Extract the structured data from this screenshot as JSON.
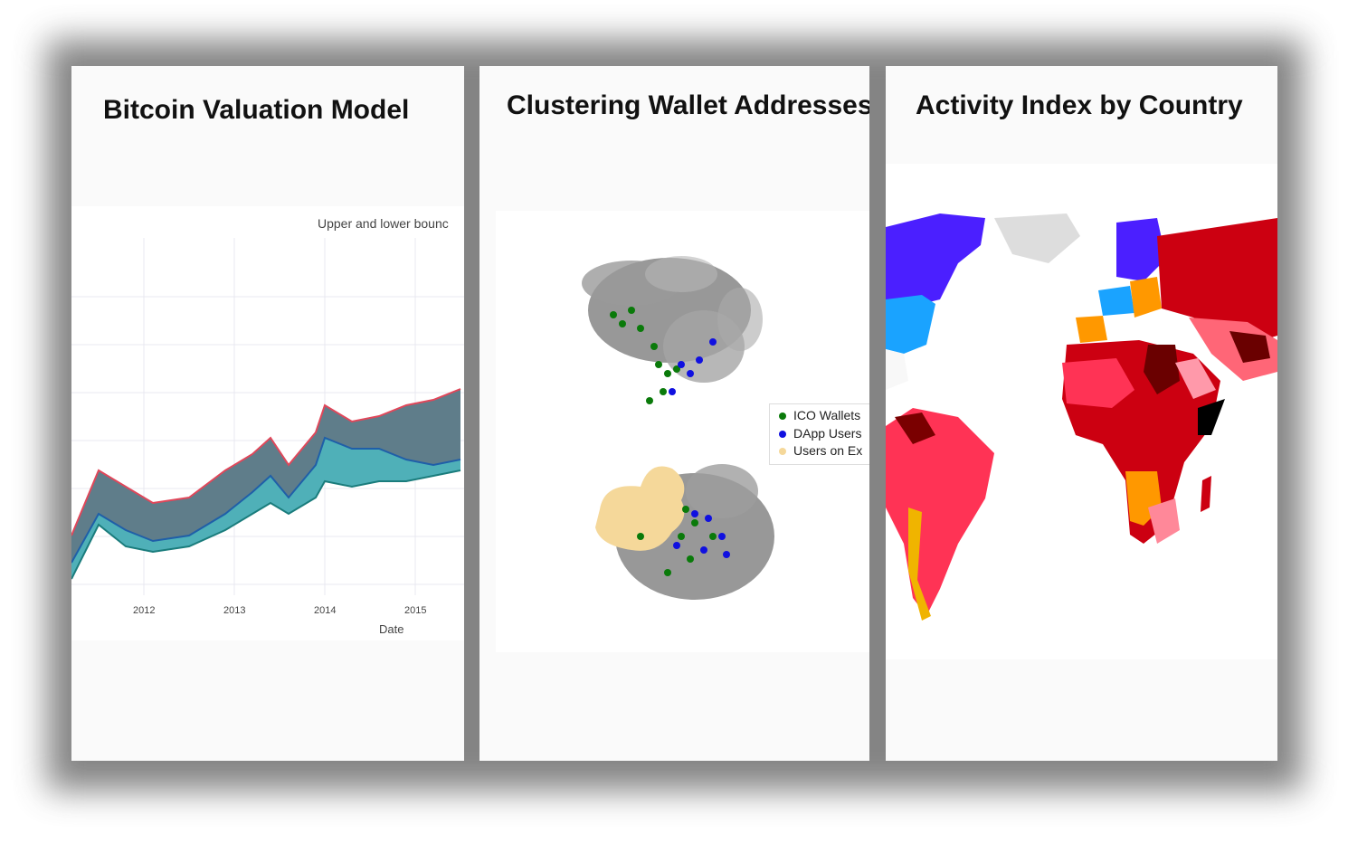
{
  "cards": [
    {
      "title": "Bitcoin Valuation Model",
      "plot_title": "Upper and lower bounc",
      "x_ticks": [
        "2012",
        "2013",
        "2014",
        "2015"
      ],
      "x_axis_title": "Date"
    },
    {
      "title": "Clustering Wallet Addresses",
      "legend": [
        {
          "label": "ICO Wallets",
          "color": "#0a7a0a"
        },
        {
          "label": "DApp Users",
          "color": "#1010e0"
        },
        {
          "label": "Users on Ex",
          "color": "#f5d89a"
        }
      ]
    },
    {
      "title": "Activity Index by Country"
    }
  ],
  "chart_data": [
    {
      "type": "area",
      "title": "Upper and lower bounc",
      "xlabel": "Date",
      "ylabel": "",
      "x": [
        2011.2,
        2011.5,
        2011.8,
        2012.1,
        2012.5,
        2012.9,
        2013.2,
        2013.4,
        2013.6,
        2013.9,
        2014.0,
        2014.3,
        2014.6,
        2014.9,
        2015.2,
        2015.5
      ],
      "series": [
        {
          "values": [
            2.1,
            3.3,
            3.0,
            2.7,
            2.8,
            3.3,
            3.6,
            3.9,
            3.4,
            4.0,
            4.5,
            4.2,
            4.3,
            4.5,
            4.6,
            4.8
          ]
        },
        {
          "values": [
            1.6,
            2.5,
            2.2,
            2.0,
            2.1,
            2.5,
            2.9,
            3.2,
            2.8,
            3.4,
            3.9,
            3.7,
            3.7,
            3.5,
            3.4,
            3.5
          ]
        },
        {
          "values": [
            1.3,
            2.3,
            1.9,
            1.8,
            1.9,
            2.2,
            2.5,
            2.7,
            2.5,
            2.8,
            3.1,
            3.0,
            3.1,
            3.1,
            3.2,
            3.3
          ]
        }
      ]
    },
    {
      "type": "scatter",
      "series": [
        {
          "name": "ICO Wallets"
        },
        {
          "name": "DApp Users"
        },
        {
          "name": "Users on Ex"
        }
      ]
    }
  ]
}
